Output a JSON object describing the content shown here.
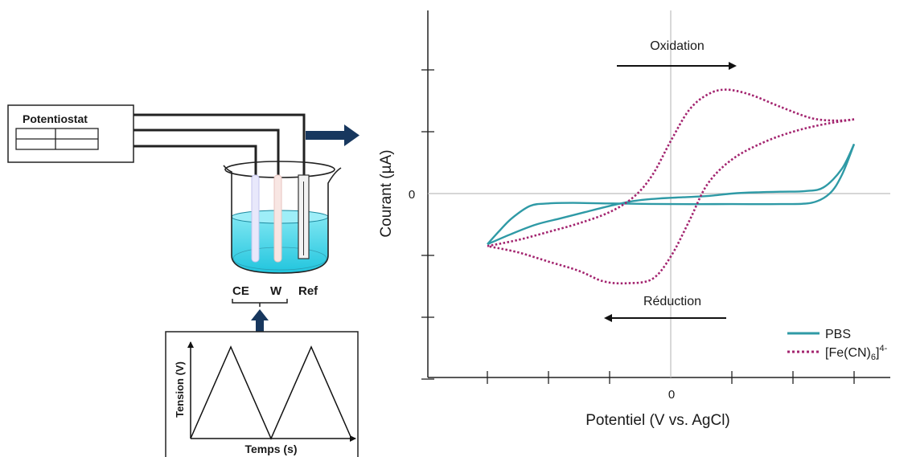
{
  "setup": {
    "potentiostat_label": "Potentiostat",
    "electrode_labels": [
      "CE",
      "W",
      "Ref"
    ]
  },
  "waveform": {
    "ylabel": "Tension (V)",
    "xlabel": "Temps (s)"
  },
  "chart_data": {
    "type": "line",
    "xlabel": "Potentiel (V vs. AgCl)",
    "ylabel": "Courant (µA)",
    "x_ticks": [
      "0"
    ],
    "y_ticks": [
      "0"
    ],
    "annotations": {
      "oxidation": "Oxidation",
      "reduction": "Réduction"
    },
    "legend_position": "bottom-right",
    "series": [
      {
        "name": "PBS",
        "color": "#2f9aa6",
        "style": "solid",
        "forward": [
          [
            -3.0,
            -0.82
          ],
          [
            -2.6,
            -0.65
          ],
          [
            -2.2,
            -0.5
          ],
          [
            -1.8,
            -0.4
          ],
          [
            -1.4,
            -0.3
          ],
          [
            -1.0,
            -0.2
          ],
          [
            -0.6,
            -0.12
          ],
          [
            -0.2,
            -0.08
          ],
          [
            0.2,
            -0.06
          ],
          [
            0.6,
            -0.04
          ],
          [
            1.0,
            0.0
          ],
          [
            1.4,
            0.02
          ],
          [
            1.8,
            0.03
          ],
          [
            2.2,
            0.04
          ],
          [
            2.5,
            0.1
          ],
          [
            2.8,
            0.4
          ],
          [
            3.0,
            0.8
          ]
        ],
        "reverse": [
          [
            3.0,
            0.8
          ],
          [
            2.8,
            0.3
          ],
          [
            2.6,
            0.0
          ],
          [
            2.3,
            -0.15
          ],
          [
            1.8,
            -0.17
          ],
          [
            1.0,
            -0.17
          ],
          [
            0.0,
            -0.17
          ],
          [
            -1.0,
            -0.16
          ],
          [
            -1.6,
            -0.15
          ],
          [
            -2.0,
            -0.16
          ],
          [
            -2.3,
            -0.2
          ],
          [
            -2.6,
            -0.4
          ],
          [
            -2.8,
            -0.6
          ],
          [
            -3.0,
            -0.82
          ]
        ]
      },
      {
        "name": "[Fe(CN)6]4-",
        "legend_base": "[Fe(CN)",
        "legend_sub": "6",
        "legend_close": "]",
        "legend_sup": "4-",
        "color": "#a3246f",
        "style": "dotted",
        "forward": [
          [
            -3.0,
            -0.85
          ],
          [
            -2.5,
            -0.75
          ],
          [
            -2.0,
            -0.62
          ],
          [
            -1.5,
            -0.48
          ],
          [
            -1.0,
            -0.3
          ],
          [
            -0.6,
            -0.05
          ],
          [
            -0.3,
            0.3
          ],
          [
            0.0,
            0.85
          ],
          [
            0.3,
            1.35
          ],
          [
            0.6,
            1.6
          ],
          [
            0.9,
            1.68
          ],
          [
            1.3,
            1.6
          ],
          [
            1.8,
            1.4
          ],
          [
            2.3,
            1.22
          ],
          [
            2.7,
            1.18
          ],
          [
            3.0,
            1.2
          ]
        ],
        "reverse": [
          [
            3.0,
            1.2
          ],
          [
            2.5,
            1.12
          ],
          [
            2.0,
            1.0
          ],
          [
            1.5,
            0.82
          ],
          [
            1.0,
            0.55
          ],
          [
            0.6,
            0.15
          ],
          [
            0.3,
            -0.45
          ],
          [
            0.0,
            -1.02
          ],
          [
            -0.3,
            -1.38
          ],
          [
            -0.7,
            -1.45
          ],
          [
            -1.1,
            -1.42
          ],
          [
            -1.5,
            -1.25
          ],
          [
            -2.0,
            -1.1
          ],
          [
            -2.5,
            -0.95
          ],
          [
            -3.0,
            -0.85
          ]
        ]
      }
    ]
  }
}
